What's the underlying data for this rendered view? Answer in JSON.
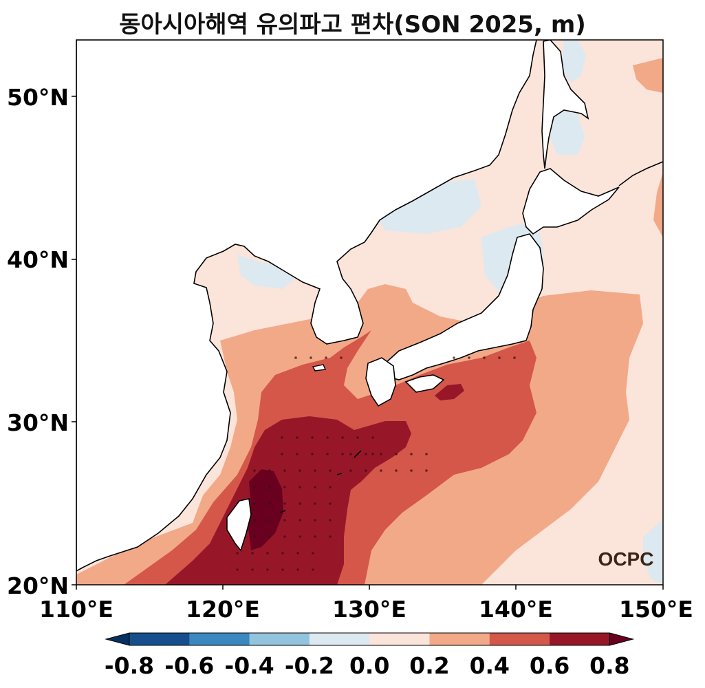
{
  "title": "동아시아해역 유의파고 편차(SON 2025, m)",
  "map": {
    "lon_range": [
      110,
      150
    ],
    "lat_range": [
      20,
      53.5
    ],
    "y_ticks": [
      "50°N",
      "40°N",
      "30°N",
      "20°N"
    ],
    "x_ticks": [
      "110°E",
      "120°E",
      "130°E",
      "140°E",
      "150°E"
    ],
    "logo_text": "OCPC",
    "colors": {
      "c1": "#fbe4d9",
      "c2": "#f2a988",
      "c3": "#d4574a",
      "c4": "#971729",
      "c5": "#690020",
      "neg": "#dde9f1",
      "land": "#ffffff",
      "coast": "#000000"
    }
  },
  "colorbar": {
    "labels": [
      "-0.8",
      "-0.6",
      "-0.4",
      "-0.2",
      "0.0",
      "0.2",
      "0.4",
      "0.6",
      "0.8"
    ],
    "colors": [
      "#053061",
      "#164f8c",
      "#3a88bf",
      "#92c4de",
      "#dde9f1",
      "#fbe4d9",
      "#f2a988",
      "#d4574a",
      "#971729",
      "#690020"
    ]
  }
}
